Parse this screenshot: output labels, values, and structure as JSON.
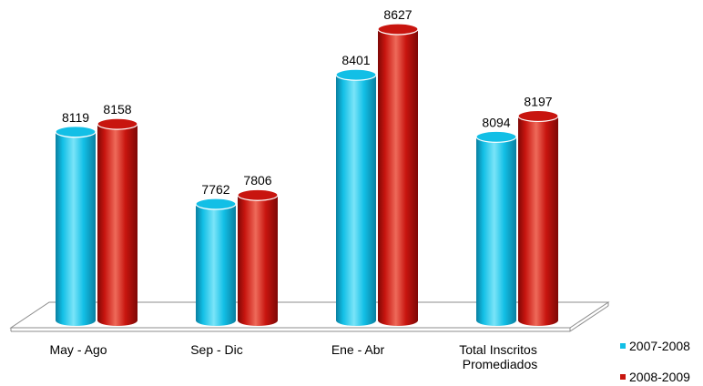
{
  "chart_data": {
    "type": "bar",
    "style": "3d-cylinder",
    "categories": [
      "May - Ago",
      "Sep - Dic",
      "Ene - Abr",
      "Total Inscritos Promediados"
    ],
    "series": [
      {
        "name": "2007-2008",
        "values": [
          8119,
          7762,
          8401,
          8094
        ],
        "color": "#12bfe6",
        "dark": "#0a7fa0",
        "light": "#7ae4f8"
      },
      {
        "name": "2008-2009",
        "values": [
          8158,
          7806,
          8627,
          8197
        ],
        "color": "#c8150f",
        "dark": "#7e0806",
        "light": "#ee6a5a"
      }
    ],
    "legend_position": "right",
    "grid": false,
    "title": "",
    "xlabel": "",
    "ylabel": ""
  }
}
